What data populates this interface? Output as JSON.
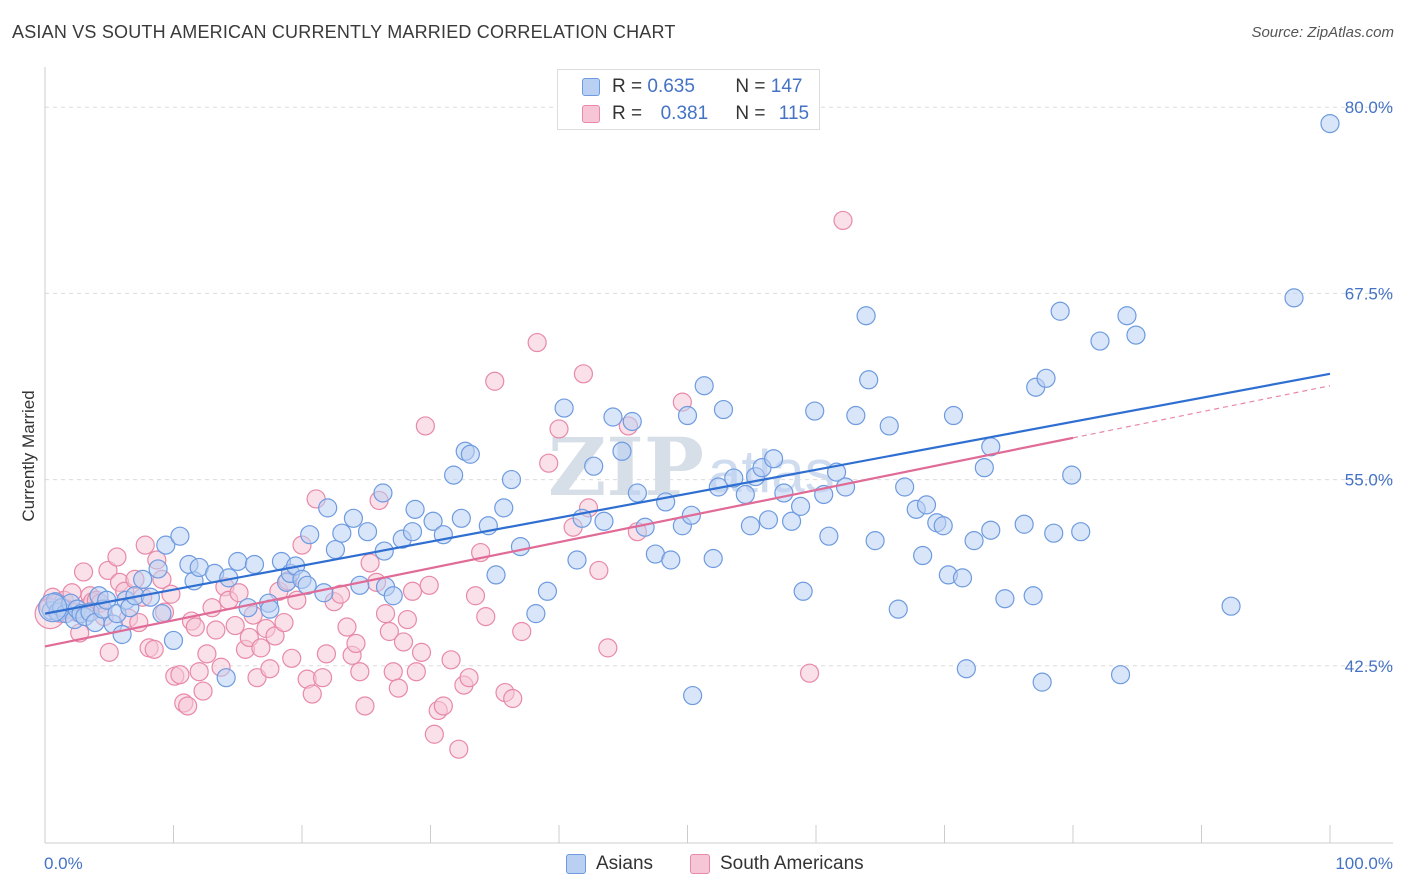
{
  "header": {
    "title": "ASIAN VS SOUTH AMERICAN CURRENTLY MARRIED CORRELATION CHART",
    "source": "Source: ZipAtlas.com"
  },
  "legend": {
    "rows": [
      {
        "r_label": "R =",
        "r_value": "0.635",
        "n_label": "N =",
        "n_value": "147",
        "color": "#6e9be0",
        "fill": "#b9d0f2"
      },
      {
        "r_label": "R =",
        "r_value": "0.381",
        "n_label": "N =",
        "n_value": "115",
        "color": "#e889a8",
        "fill": "#f6c6d6"
      }
    ]
  },
  "bottom_legend": {
    "asians": "Asians",
    "south_americans": "South Americans"
  },
  "watermark": {
    "zip": "ZIP",
    "atlas": "atlas"
  },
  "chart_data": {
    "type": "scatter",
    "ylabel": "Currently Married",
    "xlabel": "",
    "x_tick_labels": [
      "0.0%",
      "100.0%"
    ],
    "y_tick_labels": [
      "42.5%",
      "55.0%",
      "67.5%",
      "80.0%"
    ],
    "y_ticks": [
      42.5,
      55.0,
      67.5,
      80.0
    ],
    "xlim": [
      0,
      100
    ],
    "ylim": [
      30.6,
      82.7
    ],
    "grid": true,
    "series": [
      {
        "name": "Asians",
        "color": "#6e9be0",
        "fill": "#b9d0f2",
        "trend": {
          "x0": 0,
          "y0": 46.0,
          "x1": 100,
          "y1": 62.1
        },
        "points": [
          [
            0.5,
            46.2
          ],
          [
            0.8,
            46.8
          ],
          [
            1.0,
            46.1
          ],
          [
            1.3,
            46.4
          ],
          [
            1.6,
            46.0
          ],
          [
            2.0,
            46.7
          ],
          [
            2.3,
            45.6
          ],
          [
            2.5,
            46.3
          ],
          [
            2.8,
            46.0
          ],
          [
            3.1,
            45.8
          ],
          [
            3.5,
            46.1
          ],
          [
            3.9,
            45.4
          ],
          [
            4.2,
            47.2
          ],
          [
            4.5,
            46.3
          ],
          [
            4.8,
            46.9
          ],
          [
            5.3,
            45.3
          ],
          [
            5.6,
            46.0
          ],
          [
            6.0,
            44.6
          ],
          [
            6.3,
            46.9
          ],
          [
            6.6,
            46.4
          ],
          [
            7.0,
            47.2
          ],
          [
            7.6,
            48.3
          ],
          [
            8.2,
            47.1
          ],
          [
            8.8,
            49.0
          ],
          [
            9.1,
            46.0
          ],
          [
            9.4,
            50.6
          ],
          [
            10.0,
            44.2
          ],
          [
            10.5,
            51.2
          ],
          [
            11.2,
            49.3
          ],
          [
            11.6,
            48.2
          ],
          [
            12.0,
            49.1
          ],
          [
            13.2,
            48.7
          ],
          [
            14.1,
            41.7
          ],
          [
            14.3,
            48.4
          ],
          [
            15.0,
            49.5
          ],
          [
            15.8,
            46.4
          ],
          [
            16.3,
            49.3
          ],
          [
            17.4,
            46.7
          ],
          [
            17.5,
            46.3
          ],
          [
            18.4,
            49.5
          ],
          [
            18.8,
            48.1
          ],
          [
            19.1,
            48.7
          ],
          [
            19.5,
            49.2
          ],
          [
            20.0,
            48.3
          ],
          [
            20.4,
            47.9
          ],
          [
            20.6,
            51.3
          ],
          [
            21.7,
            47.4
          ],
          [
            22.0,
            53.1
          ],
          [
            22.6,
            50.3
          ],
          [
            23.1,
            51.4
          ],
          [
            24.0,
            52.4
          ],
          [
            24.5,
            47.9
          ],
          [
            25.1,
            51.5
          ],
          [
            26.3,
            54.1
          ],
          [
            26.4,
            50.2
          ],
          [
            26.5,
            47.8
          ],
          [
            27.1,
            47.2
          ],
          [
            27.8,
            51.0
          ],
          [
            28.6,
            51.5
          ],
          [
            28.8,
            53.0
          ],
          [
            30.2,
            52.2
          ],
          [
            31.0,
            51.3
          ],
          [
            31.8,
            55.3
          ],
          [
            32.4,
            52.4
          ],
          [
            32.7,
            56.9
          ],
          [
            33.1,
            56.7
          ],
          [
            34.5,
            51.9
          ],
          [
            35.1,
            48.6
          ],
          [
            35.7,
            53.1
          ],
          [
            36.3,
            55.0
          ],
          [
            37.0,
            50.5
          ],
          [
            38.2,
            46.0
          ],
          [
            39.1,
            47.5
          ],
          [
            40.4,
            59.8
          ],
          [
            41.4,
            49.6
          ],
          [
            41.8,
            52.4
          ],
          [
            42.7,
            55.9
          ],
          [
            43.5,
            52.2
          ],
          [
            44.2,
            59.2
          ],
          [
            44.9,
            56.9
          ],
          [
            45.7,
            58.9
          ],
          [
            46.1,
            54.1
          ],
          [
            46.7,
            51.8
          ],
          [
            47.5,
            50.0
          ],
          [
            48.3,
            53.5
          ],
          [
            48.7,
            49.6
          ],
          [
            49.6,
            51.9
          ],
          [
            50.0,
            59.3
          ],
          [
            50.3,
            52.6
          ],
          [
            50.4,
            40.5
          ],
          [
            51.3,
            61.3
          ],
          [
            52.0,
            49.7
          ],
          [
            52.4,
            54.5
          ],
          [
            52.8,
            59.7
          ],
          [
            53.6,
            55.1
          ],
          [
            54.5,
            54.0
          ],
          [
            54.9,
            51.9
          ],
          [
            55.3,
            55.2
          ],
          [
            55.8,
            55.8
          ],
          [
            56.3,
            52.3
          ],
          [
            56.7,
            56.4
          ],
          [
            57.5,
            54.1
          ],
          [
            58.1,
            52.2
          ],
          [
            58.8,
            53.2
          ],
          [
            59.0,
            47.5
          ],
          [
            59.9,
            59.6
          ],
          [
            60.6,
            54.0
          ],
          [
            61.0,
            51.2
          ],
          [
            61.6,
            55.5
          ],
          [
            62.3,
            54.5
          ],
          [
            63.1,
            59.3
          ],
          [
            63.9,
            66.0
          ],
          [
            64.1,
            61.7
          ],
          [
            64.6,
            50.9
          ],
          [
            65.7,
            58.6
          ],
          [
            66.4,
            46.3
          ],
          [
            66.9,
            54.5
          ],
          [
            67.8,
            53.0
          ],
          [
            68.3,
            49.9
          ],
          [
            68.6,
            53.3
          ],
          [
            69.4,
            52.1
          ],
          [
            69.9,
            51.9
          ],
          [
            70.3,
            48.6
          ],
          [
            70.7,
            59.3
          ],
          [
            71.4,
            48.4
          ],
          [
            71.7,
            42.3
          ],
          [
            72.3,
            50.9
          ],
          [
            73.1,
            55.8
          ],
          [
            73.6,
            57.2
          ],
          [
            73.6,
            51.6
          ],
          [
            74.7,
            47.0
          ],
          [
            76.2,
            52.0
          ],
          [
            76.9,
            47.2
          ],
          [
            77.1,
            61.2
          ],
          [
            77.6,
            41.4
          ],
          [
            77.9,
            61.8
          ],
          [
            78.5,
            51.4
          ],
          [
            79.0,
            66.3
          ],
          [
            79.9,
            55.3
          ],
          [
            80.6,
            51.5
          ],
          [
            82.1,
            64.3
          ],
          [
            83.7,
            41.9
          ],
          [
            84.2,
            66.0
          ],
          [
            84.9,
            64.7
          ],
          [
            92.3,
            46.5
          ],
          [
            97.2,
            67.2
          ],
          [
            100.0,
            78.9
          ]
        ]
      },
      {
        "name": "South Americans",
        "color": "#e889a8",
        "fill": "#f6c6d6",
        "trend": {
          "x0": 0,
          "y0": 43.8,
          "x1": 80,
          "y1": 57.8,
          "dash_x1": 100,
          "dash_y1": 61.3
        },
        "points": [
          [
            0.3,
            46.5
          ],
          [
            0.6,
            47.1
          ],
          [
            0.9,
            46.7
          ],
          [
            1.2,
            46.0
          ],
          [
            1.5,
            46.9
          ],
          [
            1.8,
            46.3
          ],
          [
            2.1,
            47.4
          ],
          [
            2.4,
            46.1
          ],
          [
            2.7,
            44.7
          ],
          [
            3.0,
            48.8
          ],
          [
            3.2,
            46.4
          ],
          [
            3.5,
            47.2
          ],
          [
            3.7,
            46.8
          ],
          [
            4.0,
            46.9
          ],
          [
            4.3,
            46.7
          ],
          [
            4.6,
            45.8
          ],
          [
            4.9,
            48.9
          ],
          [
            5.0,
            43.4
          ],
          [
            5.6,
            49.8
          ],
          [
            5.8,
            48.1
          ],
          [
            6.2,
            47.5
          ],
          [
            6.5,
            45.7
          ],
          [
            7.0,
            48.3
          ],
          [
            7.3,
            45.4
          ],
          [
            7.6,
            47.1
          ],
          [
            7.8,
            50.6
          ],
          [
            8.1,
            43.7
          ],
          [
            8.5,
            43.6
          ],
          [
            8.7,
            49.6
          ],
          [
            9.1,
            48.3
          ],
          [
            9.3,
            46.1
          ],
          [
            9.8,
            47.3
          ],
          [
            10.1,
            41.8
          ],
          [
            10.5,
            41.9
          ],
          [
            10.8,
            40.0
          ],
          [
            11.1,
            39.8
          ],
          [
            11.4,
            45.5
          ],
          [
            11.7,
            45.1
          ],
          [
            12.0,
            42.1
          ],
          [
            12.3,
            40.8
          ],
          [
            12.6,
            43.3
          ],
          [
            13.0,
            46.4
          ],
          [
            13.3,
            44.9
          ],
          [
            13.7,
            42.4
          ],
          [
            14.0,
            47.8
          ],
          [
            14.3,
            46.9
          ],
          [
            14.8,
            45.2
          ],
          [
            15.1,
            47.4
          ],
          [
            15.6,
            43.6
          ],
          [
            15.9,
            44.4
          ],
          [
            16.2,
            45.9
          ],
          [
            16.5,
            41.7
          ],
          [
            16.8,
            43.7
          ],
          [
            17.2,
            45.0
          ],
          [
            17.5,
            42.3
          ],
          [
            17.9,
            44.5
          ],
          [
            18.2,
            47.5
          ],
          [
            18.6,
            45.4
          ],
          [
            18.9,
            48.2
          ],
          [
            19.2,
            43.0
          ],
          [
            19.6,
            46.9
          ],
          [
            20.0,
            50.6
          ],
          [
            20.4,
            41.6
          ],
          [
            20.8,
            40.6
          ],
          [
            21.1,
            53.7
          ],
          [
            21.6,
            41.7
          ],
          [
            21.9,
            43.3
          ],
          [
            22.5,
            46.8
          ],
          [
            23.0,
            47.3
          ],
          [
            23.5,
            45.1
          ],
          [
            23.9,
            43.2
          ],
          [
            24.2,
            44.0
          ],
          [
            24.5,
            42.1
          ],
          [
            24.9,
            39.8
          ],
          [
            25.3,
            49.4
          ],
          [
            25.8,
            48.1
          ],
          [
            26.0,
            53.6
          ],
          [
            26.5,
            46.0
          ],
          [
            26.8,
            44.8
          ],
          [
            27.1,
            42.1
          ],
          [
            27.5,
            41.0
          ],
          [
            27.9,
            44.1
          ],
          [
            28.2,
            45.6
          ],
          [
            28.6,
            47.5
          ],
          [
            28.9,
            42.1
          ],
          [
            29.3,
            43.4
          ],
          [
            29.6,
            58.6
          ],
          [
            29.9,
            47.9
          ],
          [
            30.3,
            37.9
          ],
          [
            30.6,
            39.5
          ],
          [
            31.0,
            39.8
          ],
          [
            31.6,
            42.9
          ],
          [
            32.2,
            36.9
          ],
          [
            32.6,
            41.2
          ],
          [
            33.0,
            41.7
          ],
          [
            33.5,
            47.2
          ],
          [
            33.9,
            50.1
          ],
          [
            34.3,
            45.8
          ],
          [
            35.0,
            61.6
          ],
          [
            35.8,
            40.7
          ],
          [
            36.4,
            40.3
          ],
          [
            37.1,
            44.8
          ],
          [
            38.3,
            64.2
          ],
          [
            39.2,
            56.1
          ],
          [
            40.0,
            58.4
          ],
          [
            41.1,
            51.8
          ],
          [
            41.9,
            62.1
          ],
          [
            42.3,
            53.1
          ],
          [
            43.1,
            48.9
          ],
          [
            43.8,
            43.7
          ],
          [
            45.4,
            58.6
          ],
          [
            46.1,
            51.5
          ],
          [
            49.6,
            60.2
          ],
          [
            59.5,
            42.0
          ],
          [
            62.1,
            72.4
          ]
        ]
      }
    ]
  }
}
